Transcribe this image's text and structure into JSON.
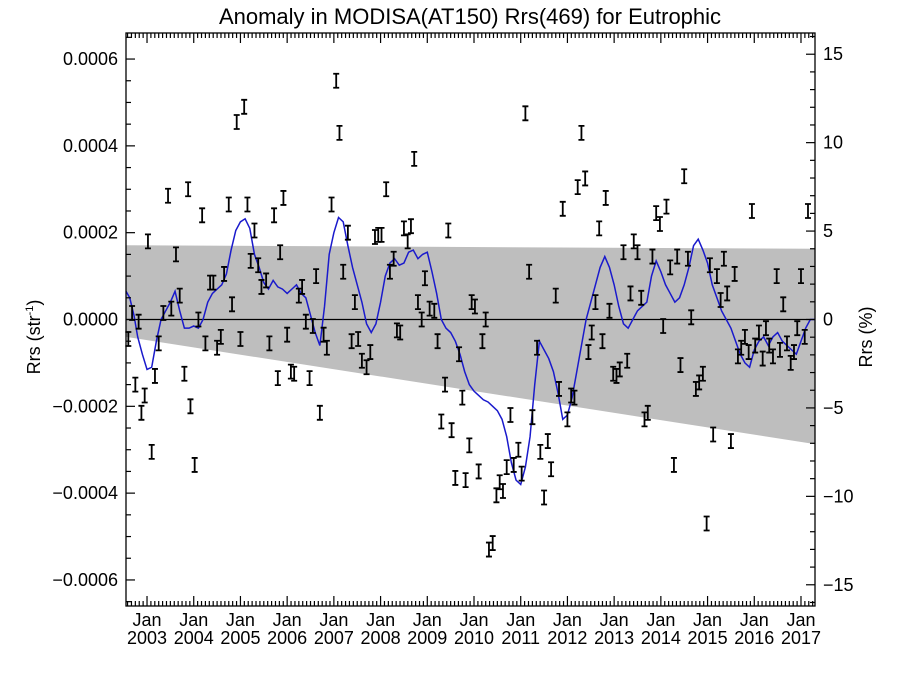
{
  "chart_data": {
    "type": "scatter",
    "title": "Anomaly in MODISA(AT150) Rrs(469) for Eutrophic",
    "ylabel_left": {
      "main": "Rrs (str",
      "sup": "-1",
      "close": ")"
    },
    "ylabel_right": "Rrs (%)",
    "x_range": [
      2002.55,
      2017.3
    ],
    "ylim_left": [
      -0.00066,
      0.00066
    ],
    "ylim_right": [
      -16.2,
      16.2
    ],
    "left_ticks": [
      {
        "value": 0.0006,
        "label": "0.0006"
      },
      {
        "value": 0.0004,
        "label": "0.0004"
      },
      {
        "value": 0.0002,
        "label": "0.0002"
      },
      {
        "value": 0.0,
        "label": "0.0000"
      },
      {
        "value": -0.0002,
        "label": "−0.0002"
      },
      {
        "value": -0.0004,
        "label": "−0.0004"
      },
      {
        "value": -0.0006,
        "label": "−0.0006"
      }
    ],
    "right_ticks": [
      {
        "value": 15,
        "label": "15"
      },
      {
        "value": 10,
        "label": "10"
      },
      {
        "value": 5,
        "label": "5"
      },
      {
        "value": 0,
        "label": "0"
      },
      {
        "value": -5,
        "label": "−5"
      },
      {
        "value": -10,
        "label": "−10"
      },
      {
        "value": -15,
        "label": "−15"
      }
    ],
    "x_ticks": [
      {
        "value": 2003.0,
        "month": "Jan",
        "year": "2003"
      },
      {
        "value": 2004.0,
        "month": "Jan",
        "year": "2004"
      },
      {
        "value": 2005.0,
        "month": "Jan",
        "year": "2005"
      },
      {
        "value": 2006.0,
        "month": "Jan",
        "year": "2006"
      },
      {
        "value": 2007.0,
        "month": "Jan",
        "year": "2007"
      },
      {
        "value": 2008.0,
        "month": "Jan",
        "year": "2008"
      },
      {
        "value": 2009.0,
        "month": "Jan",
        "year": "2009"
      },
      {
        "value": 2010.0,
        "month": "Jan",
        "year": "2010"
      },
      {
        "value": 2011.0,
        "month": "Jan",
        "year": "2011"
      },
      {
        "value": 2012.0,
        "month": "Jan",
        "year": "2012"
      },
      {
        "value": 2013.0,
        "month": "Jan",
        "year": "2013"
      },
      {
        "value": 2014.0,
        "month": "Jan",
        "year": "2014"
      },
      {
        "value": 2015.0,
        "month": "Jan",
        "year": "2015"
      },
      {
        "value": 2016.0,
        "month": "Jan",
        "year": "2016"
      },
      {
        "value": 2017.0,
        "month": "Jan",
        "year": "2017"
      }
    ],
    "band": {
      "upper": [
        [
          2002.55,
          0.000171
        ],
        [
          2017.3,
          0.000163
        ]
      ],
      "lower": [
        [
          2002.55,
          -4e-05
        ],
        [
          2017.3,
          -0.000287
        ]
      ]
    },
    "smoothed_series_color": "#1a1acc",
    "smoothed_series": [
      [
        2002.55,
        6.5e-05
      ],
      [
        2002.63,
        5e-05
      ],
      [
        2002.72,
        1e-05
      ],
      [
        2002.8,
        -4e-05
      ],
      [
        2002.9,
        -8e-05
      ],
      [
        2003.0,
        -0.000115
      ],
      [
        2003.1,
        -0.00011
      ],
      [
        2003.2,
        -5e-05
      ],
      [
        2003.3,
        0.0
      ],
      [
        2003.4,
        2e-05
      ],
      [
        2003.5,
        4e-05
      ],
      [
        2003.6,
        6.5e-05
      ],
      [
        2003.7,
        2e-05
      ],
      [
        2003.8,
        -2e-05
      ],
      [
        2003.9,
        -2e-05
      ],
      [
        2004.0,
        -1.5e-05
      ],
      [
        2004.1,
        -2e-05
      ],
      [
        2004.2,
        0.0
      ],
      [
        2004.3,
        4e-05
      ],
      [
        2004.4,
        6e-05
      ],
      [
        2004.5,
        7e-05
      ],
      [
        2004.6,
        8e-05
      ],
      [
        2004.7,
        0.000105
      ],
      [
        2004.8,
        0.00016
      ],
      [
        2004.9,
        0.000205
      ],
      [
        2005.0,
        0.000225
      ],
      [
        2005.1,
        0.000232
      ],
      [
        2005.2,
        0.00021
      ],
      [
        2005.3,
        0.00015
      ],
      [
        2005.4,
        0.00012
      ],
      [
        2005.5,
        8.5e-05
      ],
      [
        2005.6,
        7e-05
      ],
      [
        2005.7,
        9e-05
      ],
      [
        2005.8,
        7.5e-05
      ],
      [
        2005.9,
        7e-05
      ],
      [
        2006.0,
        6e-05
      ],
      [
        2006.1,
        7e-05
      ],
      [
        2006.2,
        8e-05
      ],
      [
        2006.3,
        6e-05
      ],
      [
        2006.4,
        5e-05
      ],
      [
        2006.5,
        1e-05
      ],
      [
        2006.6,
        -3e-05
      ],
      [
        2006.7,
        -6e-05
      ],
      [
        2006.8,
        3e-05
      ],
      [
        2006.9,
        0.00015
      ],
      [
        2007.0,
        0.0002
      ],
      [
        2007.1,
        0.000235
      ],
      [
        2007.2,
        0.000225
      ],
      [
        2007.3,
        0.00017
      ],
      [
        2007.4,
        0.00012
      ],
      [
        2007.5,
        8e-05
      ],
      [
        2007.6,
        4e-05
      ],
      [
        2007.7,
        -1e-05
      ],
      [
        2007.8,
        -3e-05
      ],
      [
        2007.9,
        -1e-05
      ],
      [
        2008.0,
        4e-05
      ],
      [
        2008.1,
        0.0001
      ],
      [
        2008.2,
        0.00013
      ],
      [
        2008.3,
        0.00014
      ],
      [
        2008.4,
        0.000125
      ],
      [
        2008.5,
        0.00013
      ],
      [
        2008.6,
        0.000155
      ],
      [
        2008.7,
        0.00016
      ],
      [
        2008.8,
        0.00014
      ],
      [
        2008.9,
        0.00015
      ],
      [
        2009.0,
        0.000155
      ],
      [
        2009.1,
        0.00011
      ],
      [
        2009.2,
        6e-05
      ],
      [
        2009.3,
        0.0
      ],
      [
        2009.4,
        -2e-05
      ],
      [
        2009.5,
        -3e-05
      ],
      [
        2009.6,
        -5e-05
      ],
      [
        2009.7,
        -8e-05
      ],
      [
        2009.8,
        -0.00012
      ],
      [
        2009.9,
        -0.00015
      ],
      [
        2010.0,
        -0.000165
      ],
      [
        2010.1,
        -0.000175
      ],
      [
        2010.2,
        -0.000185
      ],
      [
        2010.3,
        -0.00019
      ],
      [
        2010.4,
        -0.0002
      ],
      [
        2010.5,
        -0.00021
      ],
      [
        2010.6,
        -0.00023
      ],
      [
        2010.7,
        -0.00027
      ],
      [
        2010.8,
        -0.00033
      ],
      [
        2010.9,
        -0.00037
      ],
      [
        2011.0,
        -0.00038
      ],
      [
        2011.1,
        -0.00034
      ],
      [
        2011.2,
        -0.00027
      ],
      [
        2011.3,
        -0.00015
      ],
      [
        2011.4,
        -5e-05
      ],
      [
        2011.5,
        -7e-05
      ],
      [
        2011.6,
        -9e-05
      ],
      [
        2011.7,
        -0.00012
      ],
      [
        2011.8,
        -0.00017
      ],
      [
        2011.9,
        -0.00023
      ],
      [
        2012.0,
        -0.00022
      ],
      [
        2012.1,
        -0.00018
      ],
      [
        2012.2,
        -0.00012
      ],
      [
        2012.3,
        -6e-05
      ],
      [
        2012.4,
        0.0
      ],
      [
        2012.5,
        4e-05
      ],
      [
        2012.6,
        8e-05
      ],
      [
        2012.7,
        0.00012
      ],
      [
        2012.8,
        0.000145
      ],
      [
        2012.9,
        0.00012
      ],
      [
        2013.0,
        8e-05
      ],
      [
        2013.1,
        3e-05
      ],
      [
        2013.2,
        -1e-05
      ],
      [
        2013.3,
        -2e-05
      ],
      [
        2013.4,
        0.0
      ],
      [
        2013.5,
        2e-05
      ],
      [
        2013.6,
        3e-05
      ],
      [
        2013.7,
        4e-05
      ],
      [
        2013.8,
        0.0001
      ],
      [
        2013.9,
        0.000135
      ],
      [
        2014.0,
        0.00011
      ],
      [
        2014.1,
        8e-05
      ],
      [
        2014.2,
        6e-05
      ],
      [
        2014.3,
        4e-05
      ],
      [
        2014.4,
        5e-05
      ],
      [
        2014.5,
        8e-05
      ],
      [
        2014.6,
        0.00012
      ],
      [
        2014.7,
        0.00017
      ],
      [
        2014.8,
        0.000185
      ],
      [
        2014.9,
        0.00016
      ],
      [
        2015.0,
        0.00013
      ],
      [
        2015.1,
        8e-05
      ],
      [
        2015.2,
        5e-05
      ],
      [
        2015.3,
        2e-05
      ],
      [
        2015.4,
        0.0
      ],
      [
        2015.5,
        -2e-05
      ],
      [
        2015.6,
        -5e-05
      ],
      [
        2015.7,
        -8e-05
      ],
      [
        2015.8,
        -0.0001
      ],
      [
        2015.9,
        -0.00011
      ],
      [
        2016.0,
        -7e-05
      ],
      [
        2016.1,
        -5e-05
      ],
      [
        2016.2,
        -4e-05
      ],
      [
        2016.3,
        -6e-05
      ],
      [
        2016.4,
        -4e-05
      ],
      [
        2016.5,
        -3e-05
      ],
      [
        2016.6,
        -5e-05
      ],
      [
        2016.7,
        -6e-05
      ],
      [
        2016.8,
        -7e-05
      ],
      [
        2016.9,
        -8e-05
      ],
      [
        2017.0,
        -5e-05
      ],
      [
        2017.1,
        -2e-05
      ],
      [
        2017.2,
        0.0
      ],
      [
        2017.3,
        0.0
      ]
    ],
    "points": [
      [
        2002.6,
        -4.5e-05
      ],
      [
        2002.68,
        1.5e-05
      ],
      [
        2002.75,
        -0.00015
      ],
      [
        2002.82,
        -5e-06
      ],
      [
        2002.88,
        -0.000215
      ],
      [
        2002.95,
        -0.000175
      ],
      [
        2003.02,
        0.00018
      ],
      [
        2003.1,
        -0.000305
      ],
      [
        2003.17,
        -0.00013
      ],
      [
        2003.25,
        -5.5e-05
      ],
      [
        2003.35,
        1.5e-05
      ],
      [
        2003.45,
        0.000285
      ],
      [
        2003.52,
        2.5e-05
      ],
      [
        2003.62,
        0.00015
      ],
      [
        2003.7,
        5.5e-05
      ],
      [
        2003.8,
        -0.000125
      ],
      [
        2003.88,
        0.0003
      ],
      [
        2003.93,
        -0.0002
      ],
      [
        2004.02,
        -0.000335
      ],
      [
        2004.1,
        0.0
      ],
      [
        2004.18,
        0.00024
      ],
      [
        2004.25,
        -5.5e-05
      ],
      [
        2004.35,
        8.5e-05
      ],
      [
        2004.42,
        8.5e-05
      ],
      [
        2004.5,
        -6.5e-05
      ],
      [
        2004.58,
        -4e-05
      ],
      [
        2004.65,
        0.000105
      ],
      [
        2004.75,
        0.000265
      ],
      [
        2004.82,
        3.5e-05
      ],
      [
        2004.92,
        0.000455
      ],
      [
        2005.0,
        -4.5e-05
      ],
      [
        2005.08,
        0.00049
      ],
      [
        2005.15,
        0.000265
      ],
      [
        2005.22,
        0.000135
      ],
      [
        2005.3,
        0.000205
      ],
      [
        2005.38,
        0.000125
      ],
      [
        2005.45,
        7.5e-05
      ],
      [
        2005.55,
        9e-05
      ],
      [
        2005.62,
        -5.5e-05
      ],
      [
        2005.72,
        0.00024
      ],
      [
        2005.8,
        -0.000135
      ],
      [
        2005.85,
        0.000155
      ],
      [
        2005.92,
        0.00028
      ],
      [
        2006.0,
        -3.5e-05
      ],
      [
        2006.08,
        -0.00012
      ],
      [
        2006.15,
        -0.000125
      ],
      [
        2006.25,
        5.5e-05
      ],
      [
        2006.32,
        7.5e-05
      ],
      [
        2006.4,
        -5e-06
      ],
      [
        2006.48,
        -0.000135
      ],
      [
        2006.55,
        -1.5e-05
      ],
      [
        2006.62,
        0.0001
      ],
      [
        2006.7,
        -0.000215
      ],
      [
        2006.78,
        -3.5e-05
      ],
      [
        2006.85,
        -6.5e-05
      ],
      [
        2006.95,
        0.000265
      ],
      [
        2007.05,
        0.00055
      ],
      [
        2007.12,
        0.00043
      ],
      [
        2007.2,
        0.00011
      ],
      [
        2007.3,
        0.0002
      ],
      [
        2007.38,
        -5e-05
      ],
      [
        2007.45,
        4e-05
      ],
      [
        2007.52,
        -4.5e-05
      ],
      [
        2007.6,
        -9.5e-05
      ],
      [
        2007.7,
        -0.00011
      ],
      [
        2007.78,
        -7.5e-05
      ],
      [
        2007.88,
        0.00019
      ],
      [
        2007.95,
        0.000195
      ],
      [
        2008.02,
        0.000195
      ],
      [
        2008.12,
        0.0003
      ],
      [
        2008.2,
        0.00011
      ],
      [
        2008.28,
        0.00014
      ],
      [
        2008.35,
        -2.5e-05
      ],
      [
        2008.42,
        -3e-05
      ],
      [
        2008.5,
        0.00021
      ],
      [
        2008.58,
        0.00018
      ],
      [
        2008.65,
        0.000215
      ],
      [
        2008.72,
        0.00037
      ],
      [
        2008.8,
        4e-05
      ],
      [
        2008.88,
        0.0
      ],
      [
        2008.95,
        9.5e-05
      ],
      [
        2009.05,
        2.5e-05
      ],
      [
        2009.15,
        2e-05
      ],
      [
        2009.22,
        -5e-05
      ],
      [
        2009.3,
        -0.000235
      ],
      [
        2009.38,
        -0.00015
      ],
      [
        2009.45,
        0.000205
      ],
      [
        2009.52,
        -0.000255
      ],
      [
        2009.6,
        -0.000365
      ],
      [
        2009.68,
        -8e-05
      ],
      [
        2009.75,
        -0.00018
      ],
      [
        2009.82,
        -0.00037
      ],
      [
        2009.9,
        -0.00029
      ],
      [
        2009.95,
        4e-05
      ],
      [
        2010.02,
        3e-05
      ],
      [
        2010.1,
        -0.00035
      ],
      [
        2010.18,
        -5e-05
      ],
      [
        2010.25,
        0.0
      ],
      [
        2010.32,
        -0.00053
      ],
      [
        2010.4,
        -0.000515
      ],
      [
        2010.48,
        -0.000405
      ],
      [
        2010.55,
        -0.000375
      ],
      [
        2010.62,
        -0.000395
      ],
      [
        2010.7,
        -0.00034
      ],
      [
        2010.78,
        -0.00022
      ],
      [
        2010.85,
        -0.000335
      ],
      [
        2010.95,
        -0.0003
      ],
      [
        2011.02,
        -0.000355
      ],
      [
        2011.1,
        0.000475
      ],
      [
        2011.18,
        0.00011
      ],
      [
        2011.25,
        -0.000225
      ],
      [
        2011.35,
        -6.5e-05
      ],
      [
        2011.42,
        -0.000305
      ],
      [
        2011.5,
        -0.00041
      ],
      [
        2011.58,
        -0.00028
      ],
      [
        2011.65,
        -0.000345
      ],
      [
        2011.75,
        5.5e-05
      ],
      [
        2011.82,
        -0.00016
      ],
      [
        2011.9,
        0.000255
      ],
      [
        2012.0,
        -0.00023
      ],
      [
        2012.08,
        -0.000175
      ],
      [
        2012.15,
        -0.00018
      ],
      [
        2012.22,
        0.000305
      ],
      [
        2012.3,
        0.00043
      ],
      [
        2012.38,
        0.000325
      ],
      [
        2012.45,
        -7.5e-05
      ],
      [
        2012.52,
        -3e-05
      ],
      [
        2012.6,
        4e-05
      ],
      [
        2012.68,
        0.00021
      ],
      [
        2012.75,
        -5e-05
      ],
      [
        2012.82,
        0.00028
      ],
      [
        2012.9,
        2e-05
      ],
      [
        2012.98,
        -0.000125
      ],
      [
        2013.05,
        -0.00013
      ],
      [
        2013.12,
        -0.000115
      ],
      [
        2013.2,
        0.000155
      ],
      [
        2013.28,
        -9.5e-05
      ],
      [
        2013.35,
        6e-05
      ],
      [
        2013.42,
        0.00018
      ],
      [
        2013.5,
        0.000155
      ],
      [
        2013.58,
        5e-05
      ],
      [
        2013.65,
        -0.00023
      ],
      [
        2013.72,
        -0.000215
      ],
      [
        2013.82,
        0.000145
      ],
      [
        2013.9,
        0.000245
      ],
      [
        2013.98,
        0.00022
      ],
      [
        2014.05,
        -1.5e-05
      ],
      [
        2014.12,
        0.00026
      ],
      [
        2014.2,
        0.00012
      ],
      [
        2014.28,
        -0.000335
      ],
      [
        2014.35,
        0.000145
      ],
      [
        2014.42,
        -0.000105
      ],
      [
        2014.5,
        0.00033
      ],
      [
        2014.58,
        0.00014
      ],
      [
        2014.65,
        5e-06
      ],
      [
        2014.75,
        -0.00016
      ],
      [
        2014.82,
        -0.000145
      ],
      [
        2014.9,
        -0.000125
      ],
      [
        2014.98,
        -0.00047
      ],
      [
        2015.05,
        0.000125
      ],
      [
        2015.12,
        -0.000265
      ],
      [
        2015.2,
        0.0001
      ],
      [
        2015.28,
        4.5e-05
      ],
      [
        2015.35,
        0.00014
      ],
      [
        2015.42,
        6e-05
      ],
      [
        2015.5,
        -0.00028
      ],
      [
        2015.58,
        0.000105
      ],
      [
        2015.65,
        -8.5e-05
      ],
      [
        2015.72,
        -6.5e-05
      ],
      [
        2015.8,
        -4e-05
      ],
      [
        2015.88,
        -7.5e-05
      ],
      [
        2015.95,
        0.00025
      ],
      [
        2016.02,
        -6e-05
      ],
      [
        2016.1,
        -3e-05
      ],
      [
        2016.18,
        -9e-05
      ],
      [
        2016.25,
        -2e-05
      ],
      [
        2016.32,
        -6e-05
      ],
      [
        2016.4,
        -8.5e-05
      ],
      [
        2016.48,
        0.0001
      ],
      [
        2016.55,
        -7e-05
      ],
      [
        2016.62,
        3.5e-05
      ],
      [
        2016.7,
        -5.5e-05
      ],
      [
        2016.78,
        -0.0001
      ],
      [
        2016.85,
        -7.5e-05
      ],
      [
        2016.92,
        -2e-05
      ],
      [
        2017.0,
        0.0001
      ],
      [
        2017.08,
        -4e-05
      ],
      [
        2017.15,
        0.00025
      ]
    ]
  }
}
